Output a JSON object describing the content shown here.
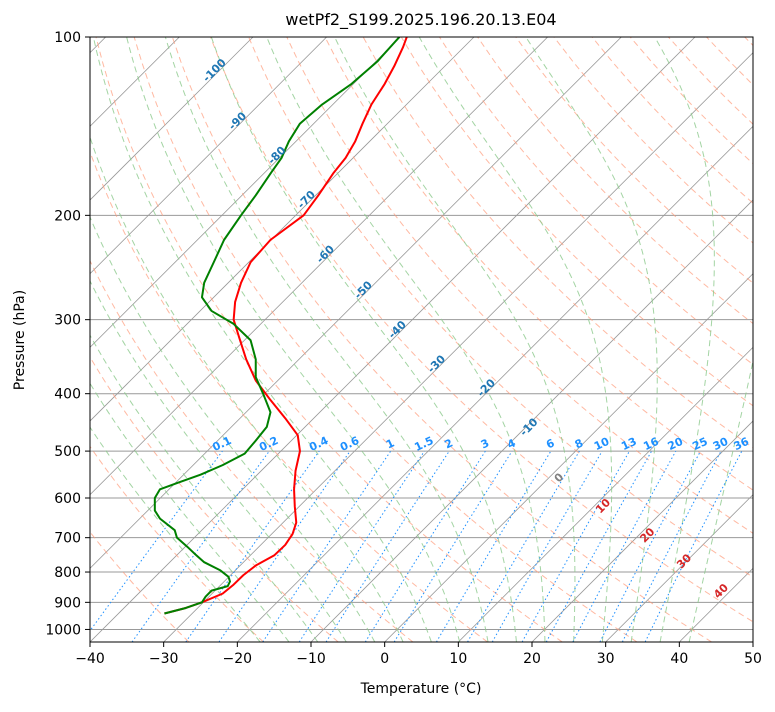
{
  "chart_data": {
    "type": "line",
    "title": "wetPf2_S199.2025.196.20.13.E04",
    "xlabel": "Temperature (°C)",
    "ylabel": "Pressure (hPa)",
    "xlim": [
      -40,
      50
    ],
    "ylim": [
      1050,
      100
    ],
    "y_scale": "log",
    "grid": true,
    "x_ticks": [
      -40,
      -30,
      -20,
      -10,
      0,
      10,
      20,
      30,
      40,
      50
    ],
    "y_ticks": [
      100,
      200,
      300,
      400,
      500,
      600,
      700,
      800,
      900,
      1000
    ],
    "colors": {
      "temperature": "#ff0000",
      "dewpoint": "#008000",
      "isotherm": "#999999",
      "dry_adiabat": "#ff9b7a",
      "moist_adiabat": "#8cc98c",
      "mixing_ratio": "#1e90ff",
      "isotherm_label": "#1f77b4",
      "dry_adiabat_label": "#d62728",
      "zero_label": "#808080",
      "iso_label_blue": "#1f77b4"
    },
    "series": [
      {
        "key": "temperature",
        "points": [
          [
            -29.9,
            940
          ],
          [
            -27,
            920
          ],
          [
            -24.8,
            900
          ],
          [
            -22,
            870
          ],
          [
            -20.5,
            840
          ],
          [
            -19.2,
            810
          ],
          [
            -17.5,
            780
          ],
          [
            -15,
            750
          ],
          [
            -13.5,
            720
          ],
          [
            -12.5,
            690
          ],
          [
            -12,
            660
          ],
          [
            -12.2,
            620
          ],
          [
            -12.3,
            580
          ],
          [
            -12.1,
            540
          ],
          [
            -11.5,
            500
          ],
          [
            -11.8,
            470
          ],
          [
            -13.5,
            440
          ],
          [
            -15.5,
            410
          ],
          [
            -17.5,
            380
          ],
          [
            -18.8,
            350
          ],
          [
            -19.8,
            320
          ],
          [
            -20.5,
            300
          ],
          [
            -20.3,
            280
          ],
          [
            -19.5,
            260
          ],
          [
            -18.2,
            240
          ],
          [
            -15.5,
            220
          ],
          [
            -11,
            200
          ],
          [
            -9,
            185
          ],
          [
            -7,
            170
          ],
          [
            -5.3,
            160
          ],
          [
            -4,
            150
          ],
          [
            -3,
            140
          ],
          [
            -1.8,
            130
          ],
          [
            0,
            120
          ],
          [
            1.3,
            112
          ],
          [
            2.5,
            104
          ],
          [
            3,
            100
          ]
        ]
      },
      {
        "key": "dewpoint",
        "points": [
          [
            -29.9,
            940
          ],
          [
            -27,
            920
          ],
          [
            -24.8,
            900
          ],
          [
            -24.3,
            880
          ],
          [
            -23.5,
            860
          ],
          [
            -21.3,
            845
          ],
          [
            -21,
            830
          ],
          [
            -21.2,
            815
          ],
          [
            -22.3,
            795
          ],
          [
            -24.5,
            770
          ],
          [
            -25.8,
            745
          ],
          [
            -26.8,
            725
          ],
          [
            -28.2,
            700
          ],
          [
            -28.5,
            680
          ],
          [
            -30.5,
            650
          ],
          [
            -31.2,
            630
          ],
          [
            -31.2,
            600
          ],
          [
            -30.5,
            580
          ],
          [
            -28,
            565
          ],
          [
            -25,
            548
          ],
          [
            -22,
            528
          ],
          [
            -19,
            505
          ],
          [
            -17.5,
            480
          ],
          [
            -16,
            455
          ],
          [
            -15.5,
            430
          ],
          [
            -16.5,
            400
          ],
          [
            -17.5,
            375
          ],
          [
            -17.5,
            350
          ],
          [
            -18.2,
            325
          ],
          [
            -20.5,
            305
          ],
          [
            -23.5,
            290
          ],
          [
            -24.8,
            275
          ],
          [
            -24.5,
            260
          ],
          [
            -23.2,
            240
          ],
          [
            -21.8,
            220
          ],
          [
            -19.5,
            200
          ],
          [
            -17.5,
            185
          ],
          [
            -15.5,
            170
          ],
          [
            -14,
            160
          ],
          [
            -13,
            150
          ],
          [
            -11.5,
            140
          ],
          [
            -8.5,
            130
          ],
          [
            -4.5,
            120
          ],
          [
            -1,
            110
          ],
          [
            2,
            100
          ]
        ]
      }
    ],
    "isotherm_labels": [
      "-100",
      "-90",
      "-80",
      "-70",
      "-60",
      "-50",
      "-40",
      "-30",
      "-20",
      "-10"
    ],
    "mixing_ratio_labels": [
      "0.1",
      "0.2",
      "0.4",
      "0.6",
      "1",
      "1.5",
      "2",
      "3",
      "4",
      "6",
      "8",
      "10",
      "13",
      "16",
      "20",
      "25",
      "30",
      "36"
    ],
    "dry_adiabat_labels": [
      "0",
      "10",
      "20",
      "30",
      "40"
    ]
  }
}
